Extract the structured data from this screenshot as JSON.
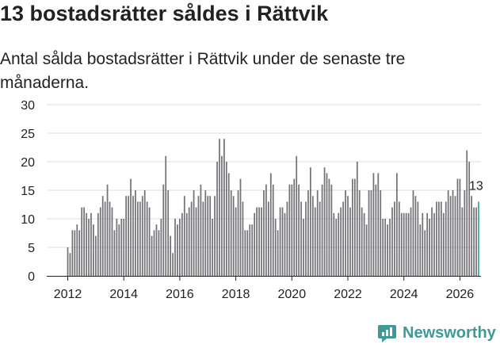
{
  "title": "13 bostadsrätter såldes i Rättvik",
  "subtitle": "Antal sålda bostadsrätter i Rättvik under de senaste tre månaderna.",
  "brand": {
    "name": "Newsworthy",
    "color": "#3f9a97"
  },
  "colors": {
    "bar": "#747378",
    "highlight": "#3aa6a2",
    "grid": "#dddddd",
    "axis": "#222222"
  },
  "chart_data": {
    "type": "bar",
    "title": "13 bostadsrätter såldes i Rättvik",
    "xlabel": "",
    "ylabel": "",
    "ylim": [
      0,
      30
    ],
    "yticks": [
      0,
      5,
      10,
      15,
      20,
      25,
      30
    ],
    "xticks": [
      "2012",
      "2014",
      "2016",
      "2018",
      "2020",
      "2022",
      "2024",
      "2026"
    ],
    "grid": true,
    "first_month": "2012-01",
    "values": [
      5,
      4,
      8,
      8,
      9,
      8,
      12,
      12,
      11,
      10,
      11,
      9,
      7,
      11,
      12,
      14,
      13,
      16,
      13,
      12,
      8,
      10,
      9,
      10,
      10,
      14,
      14,
      17,
      14,
      15,
      13,
      13,
      14,
      15,
      13,
      12,
      7,
      8,
      9,
      8,
      10,
      16,
      21,
      15,
      7,
      4,
      10,
      9,
      10,
      11,
      14,
      11,
      12,
      13,
      15,
      12,
      14,
      16,
      13,
      15,
      14,
      14,
      10,
      14,
      20,
      24,
      21,
      24,
      20,
      18,
      15,
      14,
      12,
      15,
      17,
      13,
      8,
      8,
      9,
      9,
      11,
      12,
      12,
      12,
      15,
      16,
      13,
      18,
      16,
      10,
      8,
      12,
      12,
      11,
      13,
      16,
      16,
      17,
      21,
      16,
      13,
      10,
      13,
      15,
      19,
      14,
      12,
      15,
      13,
      16,
      19,
      18,
      17,
      16,
      11,
      10,
      11,
      12,
      13,
      15,
      14,
      12,
      17,
      17,
      20,
      15,
      12,
      11,
      9,
      15,
      15,
      18,
      16,
      18,
      15,
      10,
      10,
      9,
      10,
      12,
      13,
      18,
      13,
      11,
      11,
      11,
      11,
      12,
      15,
      14,
      13,
      9,
      11,
      8,
      11,
      10,
      12,
      11,
      13,
      13,
      13,
      11,
      13,
      15,
      14,
      15,
      14,
      17,
      17,
      12,
      15,
      22,
      20,
      14,
      12,
      12,
      13
    ],
    "annotation": {
      "label": "13",
      "value": 13
    }
  }
}
